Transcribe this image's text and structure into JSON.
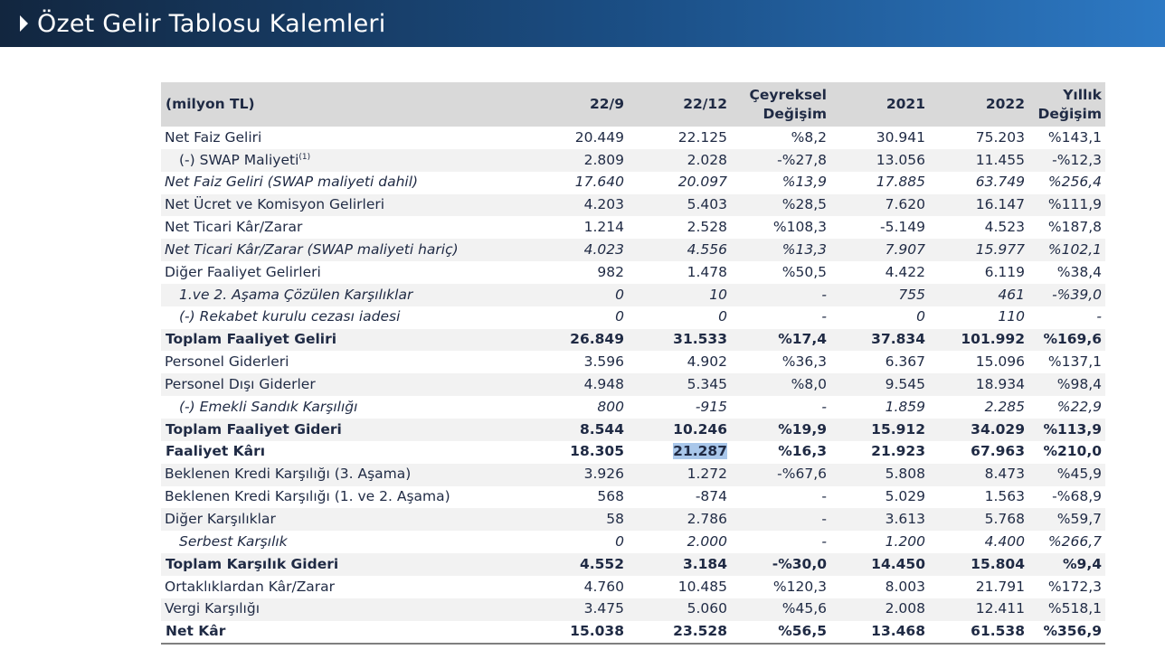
{
  "header": {
    "title": "Özet Gelir Tablosu Kalemleri"
  },
  "table": {
    "columns": {
      "label": "(milyon TL)",
      "q1": "22/9",
      "q2": "22/12",
      "qchange_1": "Çeyreksel",
      "qchange_2": "Değişim",
      "y1": "2021",
      "y2": "2022",
      "ychange_1": "Yıllık",
      "ychange_2": "Değişim"
    },
    "rows": [
      {
        "label": "Net Faiz Geliri",
        "q1": "20.449",
        "q2": "22.125",
        "qc": "%8,2",
        "y1": "30.941",
        "y2": "75.203",
        "yc": "%143,1"
      },
      {
        "label": "(-) SWAP Maliyeti",
        "sup": "(1)",
        "q1": "2.809",
        "q2": "2.028",
        "qc": "-%27,8",
        "y1": "13.056",
        "y2": "11.455",
        "yc": "-%12,3"
      },
      {
        "label": "Net Faiz Geliri (SWAP maliyeti dahil)",
        "q1": "17.640",
        "q2": "20.097",
        "qc": "%13,9",
        "y1": "17.885",
        "y2": "63.749",
        "yc": "%256,4"
      },
      {
        "label": "Net Ücret ve Komisyon Gelirleri",
        "q1": "4.203",
        "q2": "5.403",
        "qc": "%28,5",
        "y1": "7.620",
        "y2": "16.147",
        "yc": "%111,9"
      },
      {
        "label": "Net Ticari Kâr/Zarar",
        "q1": "1.214",
        "q2": "2.528",
        "qc": "%108,3",
        "y1": "-5.149",
        "y2": "4.523",
        "yc": "%187,8"
      },
      {
        "label": "Net Ticari Kâr/Zarar (SWAP maliyeti hariç)",
        "q1": "4.023",
        "q2": "4.556",
        "qc": "%13,3",
        "y1": "7.907",
        "y2": "15.977",
        "yc": "%102,1"
      },
      {
        "label": "Diğer Faaliyet Gelirleri",
        "q1": "982",
        "q2": "1.478",
        "qc": "%50,5",
        "y1": "4.422",
        "y2": "6.119",
        "yc": "%38,4"
      },
      {
        "label": "1.ve 2. Aşama Çözülen Karşılıklar",
        "q1": "0",
        "q2": "10",
        "qc": "-",
        "y1": "755",
        "y2": "461",
        "yc": "-%39,0"
      },
      {
        "label": "(-) Rekabet kurulu cezası iadesi",
        "q1": "0",
        "q2": "0",
        "qc": "-",
        "y1": "0",
        "y2": "110",
        "yc": "-"
      },
      {
        "label": "Toplam Faaliyet Geliri",
        "q1": "26.849",
        "q2": "31.533",
        "qc": "%17,4",
        "y1": "37.834",
        "y2": "101.992",
        "yc": "%169,6"
      },
      {
        "label": "Personel Giderleri",
        "q1": "3.596",
        "q2": "4.902",
        "qc": "%36,3",
        "y1": "6.367",
        "y2": "15.096",
        "yc": "%137,1"
      },
      {
        "label": "Personel Dışı Giderler",
        "q1": "4.948",
        "q2": "5.345",
        "qc": "%8,0",
        "y1": "9.545",
        "y2": "18.934",
        "yc": "%98,4"
      },
      {
        "label": "(-) Emekli Sandık Karşılığı",
        "q1": "800",
        "q2": "-915",
        "qc": "-",
        "y1": "1.859",
        "y2": "2.285",
        "yc": "%22,9"
      },
      {
        "label": "Toplam Faaliyet Gideri",
        "q1": "8.544",
        "q2": "10.246",
        "qc": "%19,9",
        "y1": "15.912",
        "y2": "34.029",
        "yc": "%113,9"
      },
      {
        "label": "Faaliyet Kârı",
        "q1": "18.305",
        "q2": "21.287",
        "qc": "%16,3",
        "y1": "21.923",
        "y2": "67.963",
        "yc": "%210,0"
      },
      {
        "label": "Beklenen Kredi Karşılığı (3. Aşama)",
        "q1": "3.926",
        "q2": "1.272",
        "qc": "-%67,6",
        "y1": "5.808",
        "y2": "8.473",
        "yc": "%45,9"
      },
      {
        "label": "Beklenen Kredi Karşılığı (1. ve 2. Aşama)",
        "q1": "568",
        "q2": "-874",
        "qc": "-",
        "y1": "5.029",
        "y2": "1.563",
        "yc": "-%68,9"
      },
      {
        "label": "Diğer Karşılıklar",
        "q1": "58",
        "q2": "2.786",
        "qc": "-",
        "y1": "3.613",
        "y2": "5.768",
        "yc": "%59,7"
      },
      {
        "label": "Serbest Karşılık",
        "q1": "0",
        "q2": "2.000",
        "qc": "-",
        "y1": "1.200",
        "y2": "4.400",
        "yc": "%266,7"
      },
      {
        "label": "Toplam Karşılık Gideri",
        "q1": "4.552",
        "q2": "3.184",
        "qc": "-%30,0",
        "y1": "14.450",
        "y2": "15.804",
        "yc": "%9,4"
      },
      {
        "label": "Ortaklıklardan Kâr/Zarar",
        "q1": "4.760",
        "q2": "10.485",
        "qc": "%120,3",
        "y1": "8.003",
        "y2": "21.791",
        "yc": "%172,3"
      },
      {
        "label": "Vergi Karşılığı",
        "q1": "3.475",
        "q2": "5.060",
        "qc": "%45,6",
        "y1": "2.008",
        "y2": "12.411",
        "yc": "%518,1"
      },
      {
        "label": "Net Kâr",
        "q1": "15.038",
        "q2": "23.528",
        "qc": "%56,5",
        "y1": "13.468",
        "y2": "61.538",
        "yc": "%356,9"
      }
    ]
  },
  "colors": {
    "banner_dark": "#12263f",
    "banner_light": "#2d79c4",
    "header_bg": "#d9d9d9",
    "stripe_bg": "#f2f2f2",
    "text": "#1f2a44",
    "selection": "#a9c7ea"
  }
}
